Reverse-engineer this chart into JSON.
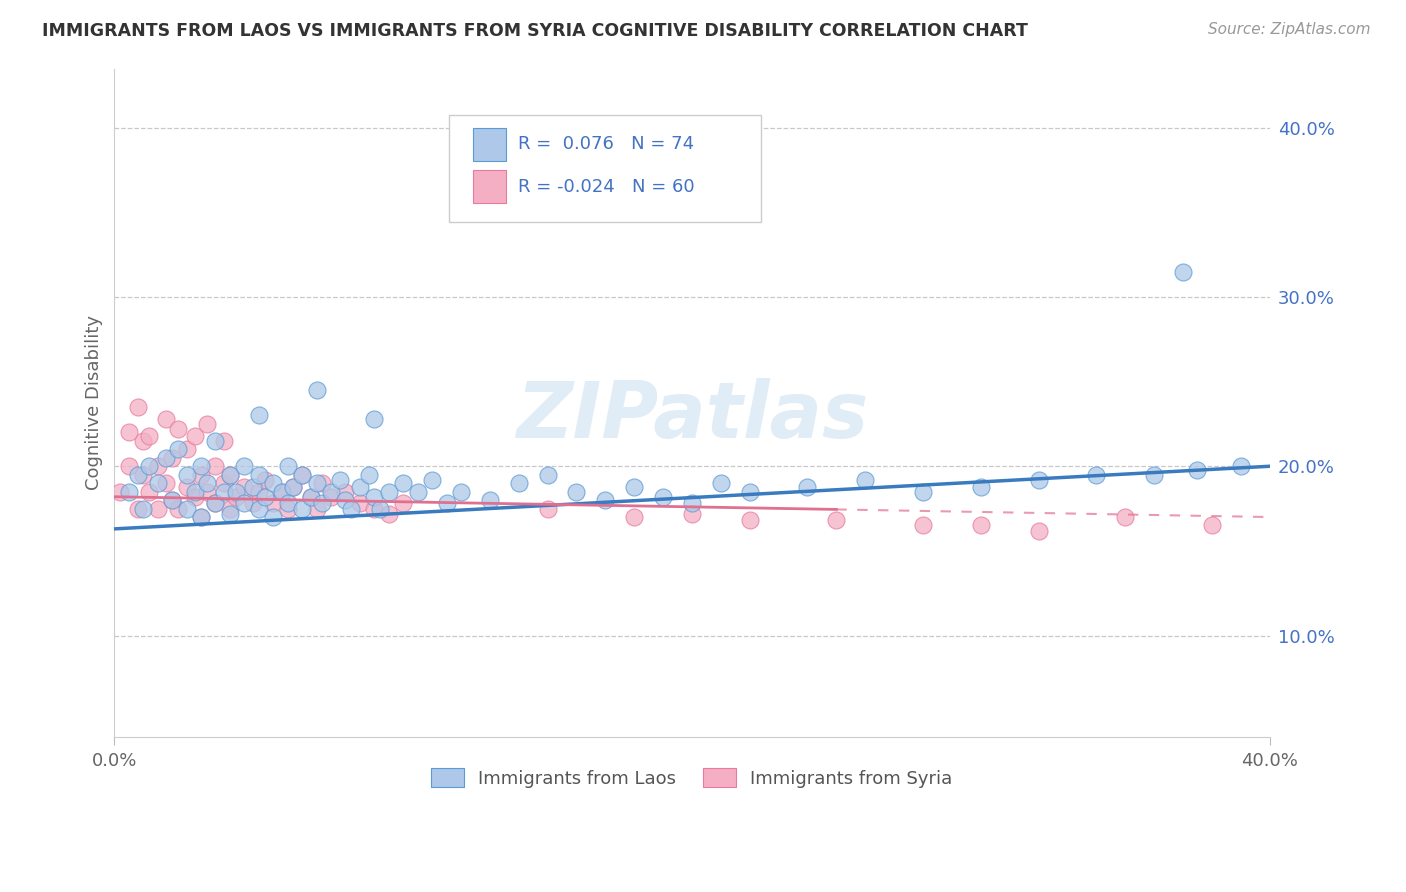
{
  "title": "IMMIGRANTS FROM LAOS VS IMMIGRANTS FROM SYRIA COGNITIVE DISABILITY CORRELATION CHART",
  "source": "Source: ZipAtlas.com",
  "ylabel": "Cognitive Disability",
  "y_ticks": [
    0.1,
    0.2,
    0.3,
    0.4
  ],
  "y_tick_labels": [
    "10.0%",
    "20.0%",
    "30.0%",
    "40.0%"
  ],
  "xlim": [
    0.0,
    0.4
  ],
  "ylim": [
    0.04,
    0.435
  ],
  "r_laos": 0.076,
  "n_laos": 74,
  "r_syria": -0.024,
  "n_syria": 60,
  "color_laos_fill": "#adc8e8",
  "color_laos_edge": "#5b9bd5",
  "color_syria_fill": "#f4afc4",
  "color_syria_edge": "#e87aa0",
  "color_text_blue": "#4472c4",
  "color_line_laos": "#3a7bbf",
  "color_line_syria": "#e07090",
  "legend_label_laos": "Immigrants from Laos",
  "legend_label_syria": "Immigrants from Syria",
  "watermark": "ZIPatlas",
  "laos_x": [
    0.005,
    0.008,
    0.01,
    0.012,
    0.015,
    0.018,
    0.02,
    0.022,
    0.025,
    0.025,
    0.028,
    0.03,
    0.03,
    0.032,
    0.035,
    0.035,
    0.038,
    0.04,
    0.04,
    0.042,
    0.045,
    0.045,
    0.048,
    0.05,
    0.05,
    0.052,
    0.055,
    0.055,
    0.058,
    0.06,
    0.06,
    0.062,
    0.065,
    0.065,
    0.068,
    0.07,
    0.072,
    0.075,
    0.078,
    0.08,
    0.082,
    0.085,
    0.088,
    0.09,
    0.092,
    0.095,
    0.1,
    0.105,
    0.11,
    0.115,
    0.12,
    0.13,
    0.14,
    0.15,
    0.16,
    0.17,
    0.18,
    0.19,
    0.2,
    0.21,
    0.22,
    0.24,
    0.26,
    0.28,
    0.3,
    0.32,
    0.34,
    0.36,
    0.375,
    0.39,
    0.05,
    0.07,
    0.09,
    0.37
  ],
  "laos_y": [
    0.185,
    0.195,
    0.175,
    0.2,
    0.19,
    0.205,
    0.18,
    0.21,
    0.175,
    0.195,
    0.185,
    0.17,
    0.2,
    0.19,
    0.215,
    0.178,
    0.185,
    0.172,
    0.195,
    0.185,
    0.178,
    0.2,
    0.188,
    0.175,
    0.195,
    0.182,
    0.19,
    0.17,
    0.185,
    0.178,
    0.2,
    0.188,
    0.175,
    0.195,
    0.182,
    0.19,
    0.178,
    0.185,
    0.192,
    0.18,
    0.175,
    0.188,
    0.195,
    0.182,
    0.175,
    0.185,
    0.19,
    0.185,
    0.192,
    0.178,
    0.185,
    0.18,
    0.19,
    0.195,
    0.185,
    0.18,
    0.188,
    0.182,
    0.178,
    0.19,
    0.185,
    0.188,
    0.192,
    0.185,
    0.188,
    0.192,
    0.195,
    0.195,
    0.198,
    0.2,
    0.23,
    0.245,
    0.228,
    0.315
  ],
  "syria_x": [
    0.002,
    0.005,
    0.008,
    0.01,
    0.01,
    0.012,
    0.015,
    0.015,
    0.018,
    0.02,
    0.02,
    0.022,
    0.025,
    0.025,
    0.028,
    0.03,
    0.03,
    0.032,
    0.035,
    0.035,
    0.038,
    0.04,
    0.04,
    0.042,
    0.045,
    0.048,
    0.05,
    0.052,
    0.055,
    0.058,
    0.06,
    0.062,
    0.065,
    0.068,
    0.07,
    0.072,
    0.075,
    0.08,
    0.085,
    0.09,
    0.095,
    0.1,
    0.005,
    0.008,
    0.012,
    0.018,
    0.022,
    0.028,
    0.032,
    0.038,
    0.2,
    0.25,
    0.3,
    0.15,
    0.18,
    0.22,
    0.28,
    0.32,
    0.35,
    0.38
  ],
  "syria_y": [
    0.185,
    0.2,
    0.175,
    0.195,
    0.215,
    0.185,
    0.175,
    0.2,
    0.19,
    0.18,
    0.205,
    0.175,
    0.188,
    0.21,
    0.182,
    0.195,
    0.17,
    0.185,
    0.178,
    0.2,
    0.19,
    0.175,
    0.195,
    0.182,
    0.188,
    0.178,
    0.185,
    0.192,
    0.178,
    0.185,
    0.175,
    0.188,
    0.195,
    0.182,
    0.175,
    0.19,
    0.182,
    0.185,
    0.178,
    0.175,
    0.172,
    0.178,
    0.22,
    0.235,
    0.218,
    0.228,
    0.222,
    0.218,
    0.225,
    0.215,
    0.172,
    0.168,
    0.165,
    0.175,
    0.17,
    0.168,
    0.165,
    0.162,
    0.17,
    0.165
  ],
  "line_laos_x0": 0.0,
  "line_laos_y0": 0.163,
  "line_laos_x1": 0.4,
  "line_laos_y1": 0.2,
  "line_syria_x0": 0.0,
  "line_syria_y0": 0.182,
  "line_syria_x1": 0.4,
  "line_syria_y1": 0.17
}
